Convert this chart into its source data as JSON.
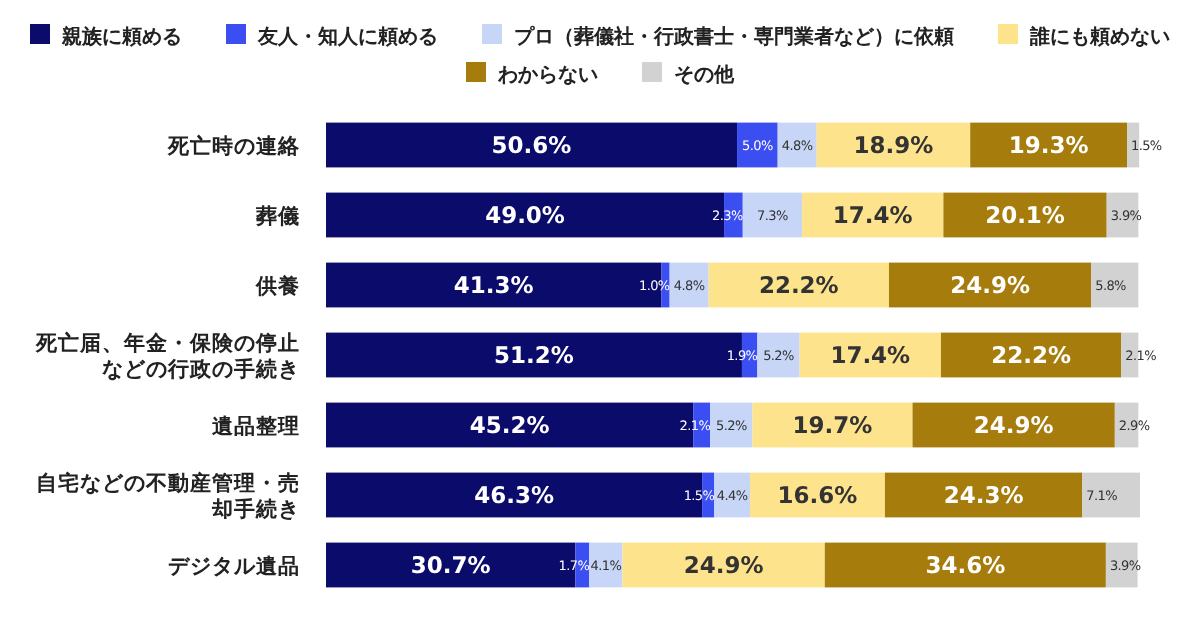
{
  "chart_data": {
    "type": "bar",
    "orientation": "horizontal",
    "stacked": true,
    "legend": "top",
    "categories": [
      "死亡時の連絡",
      "葬儀",
      "供養",
      "死亡届、年金・保険の停止などの行政の手続き",
      "遺品整理",
      "自宅などの不動産管理・売却手続き",
      "デジタル遺品"
    ],
    "series": [
      {
        "name": "親族に頼める",
        "color": "#0b0b6b",
        "values": [
          50.6,
          49.0,
          41.3,
          51.2,
          45.2,
          46.3,
          30.7
        ],
        "value_labels": [
          "50.6%",
          "49.0%",
          "41.3%",
          "51.2%",
          "45.2%",
          "46.3%",
          "30.7%"
        ]
      },
      {
        "name": "友人・知人に頼める",
        "color": "#3b4ef2",
        "values": [
          5.0,
          2.3,
          1.0,
          1.9,
          2.1,
          1.5,
          1.7
        ],
        "value_labels": [
          "5.0%",
          "2.3%",
          "1.0%",
          "1.9%",
          "2.1%",
          "1.5%",
          "1.7%"
        ]
      },
      {
        "name": "プロ（葬儀社・行政書士・専門業者など）に依頼",
        "color": "#c7d6f7",
        "values": [
          4.8,
          7.3,
          4.8,
          5.2,
          5.2,
          4.4,
          4.1
        ],
        "value_labels": [
          "4.8%",
          "7.3%",
          "4.8%",
          "5.2%",
          "5.2%",
          "4.4%",
          "4.1%"
        ]
      },
      {
        "name": "誰にも頼めない",
        "color": "#fde38c",
        "values": [
          18.9,
          17.4,
          22.2,
          17.4,
          19.7,
          16.6,
          24.9
        ],
        "value_labels": [
          "18.9%",
          "17.4%",
          "22.2%",
          "17.4%",
          "19.7%",
          "16.6%",
          "24.9%"
        ]
      },
      {
        "name": "わからない",
        "color": "#a67c0c",
        "values": [
          19.3,
          20.1,
          24.9,
          22.2,
          24.9,
          24.3,
          34.6
        ],
        "value_labels": [
          "19.3%",
          "20.1%",
          "24.9%",
          "22.2%",
          "24.9%",
          "24.3%",
          "34.6%"
        ]
      },
      {
        "name": "その他",
        "color": "#d2d2d2",
        "values": [
          1.5,
          3.9,
          5.8,
          2.1,
          2.9,
          7.1,
          3.9
        ],
        "value_labels": [
          "1.5%",
          "3.9%",
          "5.8%",
          "2.1%",
          "2.9%",
          "7.1%",
          "3.9%"
        ]
      }
    ]
  }
}
